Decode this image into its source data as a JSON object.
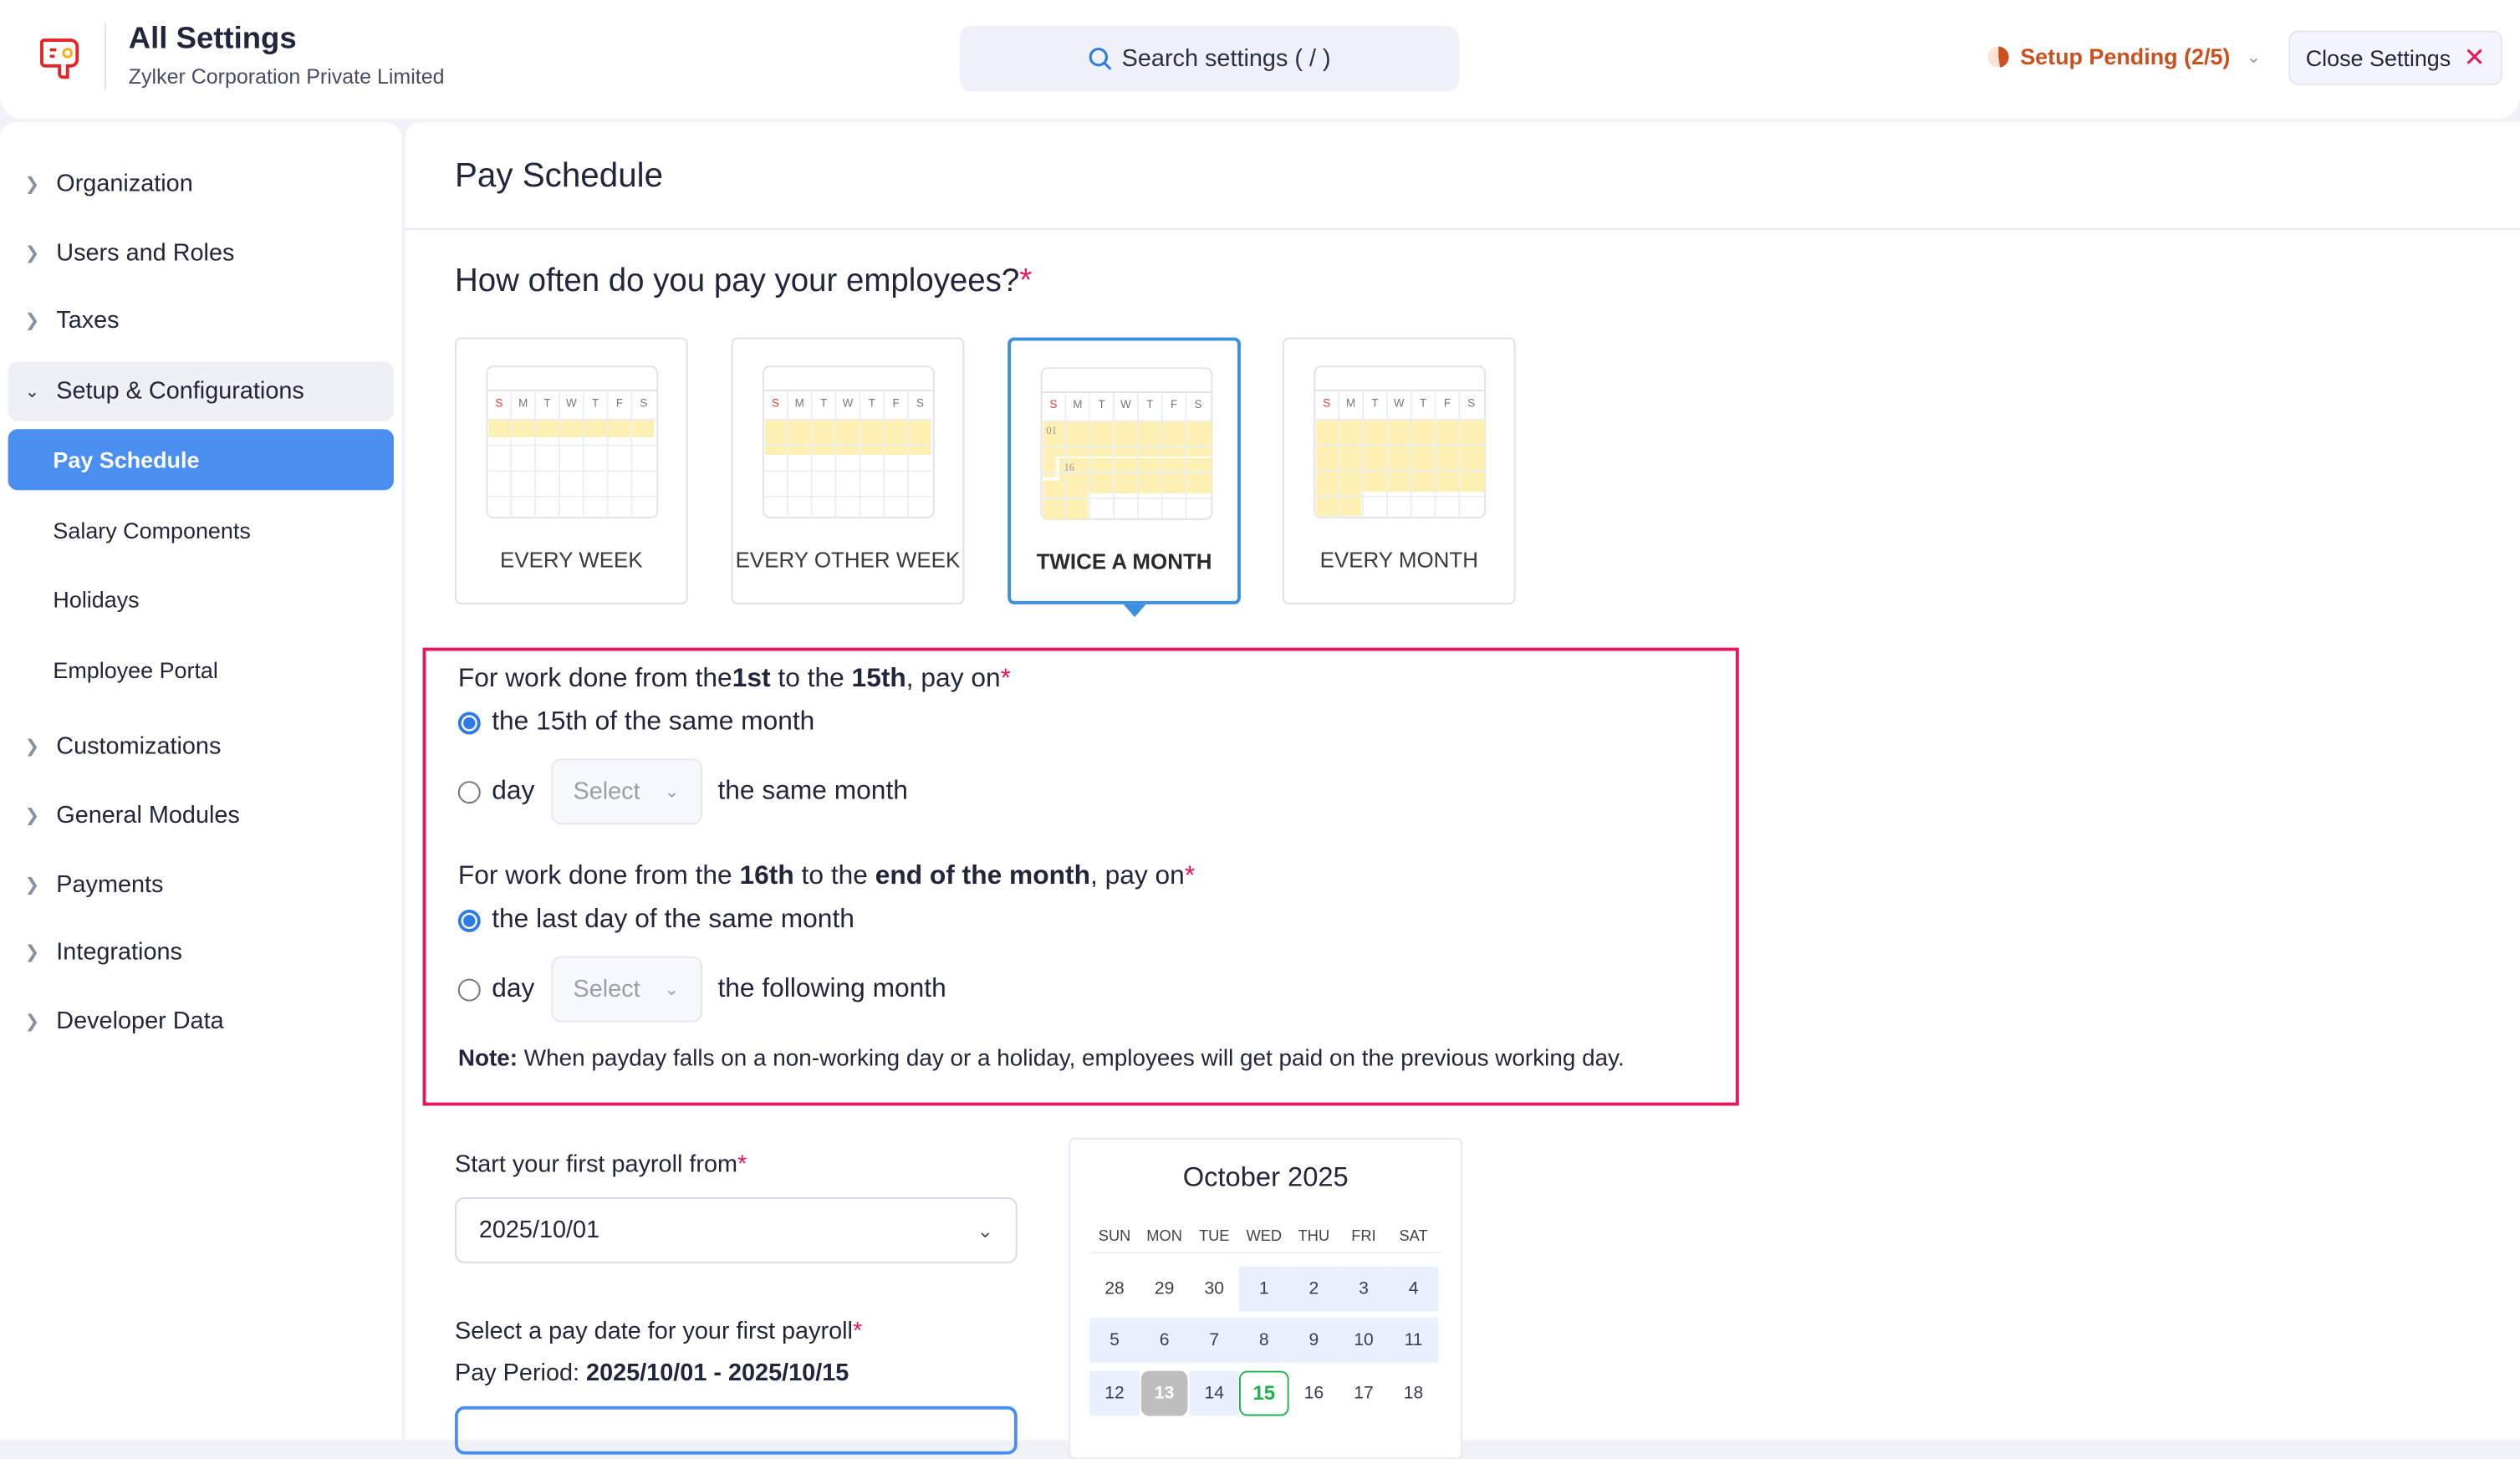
{
  "header": {
    "title": "All Settings",
    "org": "Zylker Corporation Private Limited",
    "search_placeholder": "Search settings ( / )",
    "setup_status": "Setup Pending (2/5)",
    "close_label": "Close Settings"
  },
  "colors": {
    "accent": "#4a8ff0",
    "required": "#e8175d",
    "pending": "#c9511f",
    "highlight": "#fdf0b2"
  },
  "sidebar": {
    "items": [
      {
        "label": "Organization"
      },
      {
        "label": "Users and Roles"
      },
      {
        "label": "Taxes"
      },
      {
        "label": "Setup & Configurations"
      },
      {
        "label": "Pay Schedule"
      },
      {
        "label": "Salary Components"
      },
      {
        "label": "Holidays"
      },
      {
        "label": "Employee Portal"
      },
      {
        "label": "Customizations"
      },
      {
        "label": "General Modules"
      },
      {
        "label": "Payments"
      },
      {
        "label": "Integrations"
      },
      {
        "label": "Developer Data"
      }
    ]
  },
  "main": {
    "title": "Pay Schedule",
    "question": "How often do you pay your employees?",
    "mini_weekdays": [
      "S",
      "M",
      "T",
      "W",
      "T",
      "F",
      "S"
    ],
    "frequency_options": [
      {
        "label": "EVERY WEEK"
      },
      {
        "label": "EVERY OTHER WEEK"
      },
      {
        "label": "TWICE A MONTH",
        "selected": true,
        "marks": [
          "01",
          "16"
        ]
      },
      {
        "label": "EVERY MONTH"
      }
    ],
    "first_half": {
      "pre": "For work done from the ",
      "b1": "1st",
      "mid": " to the ",
      "b2": "15th",
      "post": ", pay on",
      "opt1": "the 15th of the same month",
      "opt2_pre": "day",
      "select": "Select",
      "opt2_post": "the same month",
      "selected": "opt1"
    },
    "second_half": {
      "pre": "For work done from the ",
      "b1": "16th",
      "mid": " to the ",
      "b2": "end of the month",
      "post": ", pay on",
      "opt1": "the last day of the same month",
      "opt2_pre": "day",
      "select": "Select",
      "opt2_post": "the following month",
      "selected": "opt1"
    },
    "note_label": "Note:",
    "note": " When payday falls on a non-working day or a holiday, employees will get paid on the previous working day.",
    "start_label": "Start your first payroll from",
    "start_value": "2025/10/01",
    "paydate_label": "Select a pay date for your first payroll",
    "period_label": "Pay Period: ",
    "period_value": "2025/10/01 - 2025/10/15"
  },
  "calendar": {
    "month": "October 2025",
    "weekdays": [
      "SUN",
      "MON",
      "TUE",
      "WED",
      "THU",
      "FRI",
      "SAT"
    ],
    "weeks": [
      [
        "28",
        "29",
        "30",
        "1",
        "2",
        "3",
        "4"
      ],
      [
        "5",
        "6",
        "7",
        "8",
        "9",
        "10",
        "11"
      ],
      [
        "12",
        "13",
        "14",
        "15",
        "16",
        "17",
        "18"
      ]
    ],
    "disabled": "13",
    "selected": "15"
  }
}
